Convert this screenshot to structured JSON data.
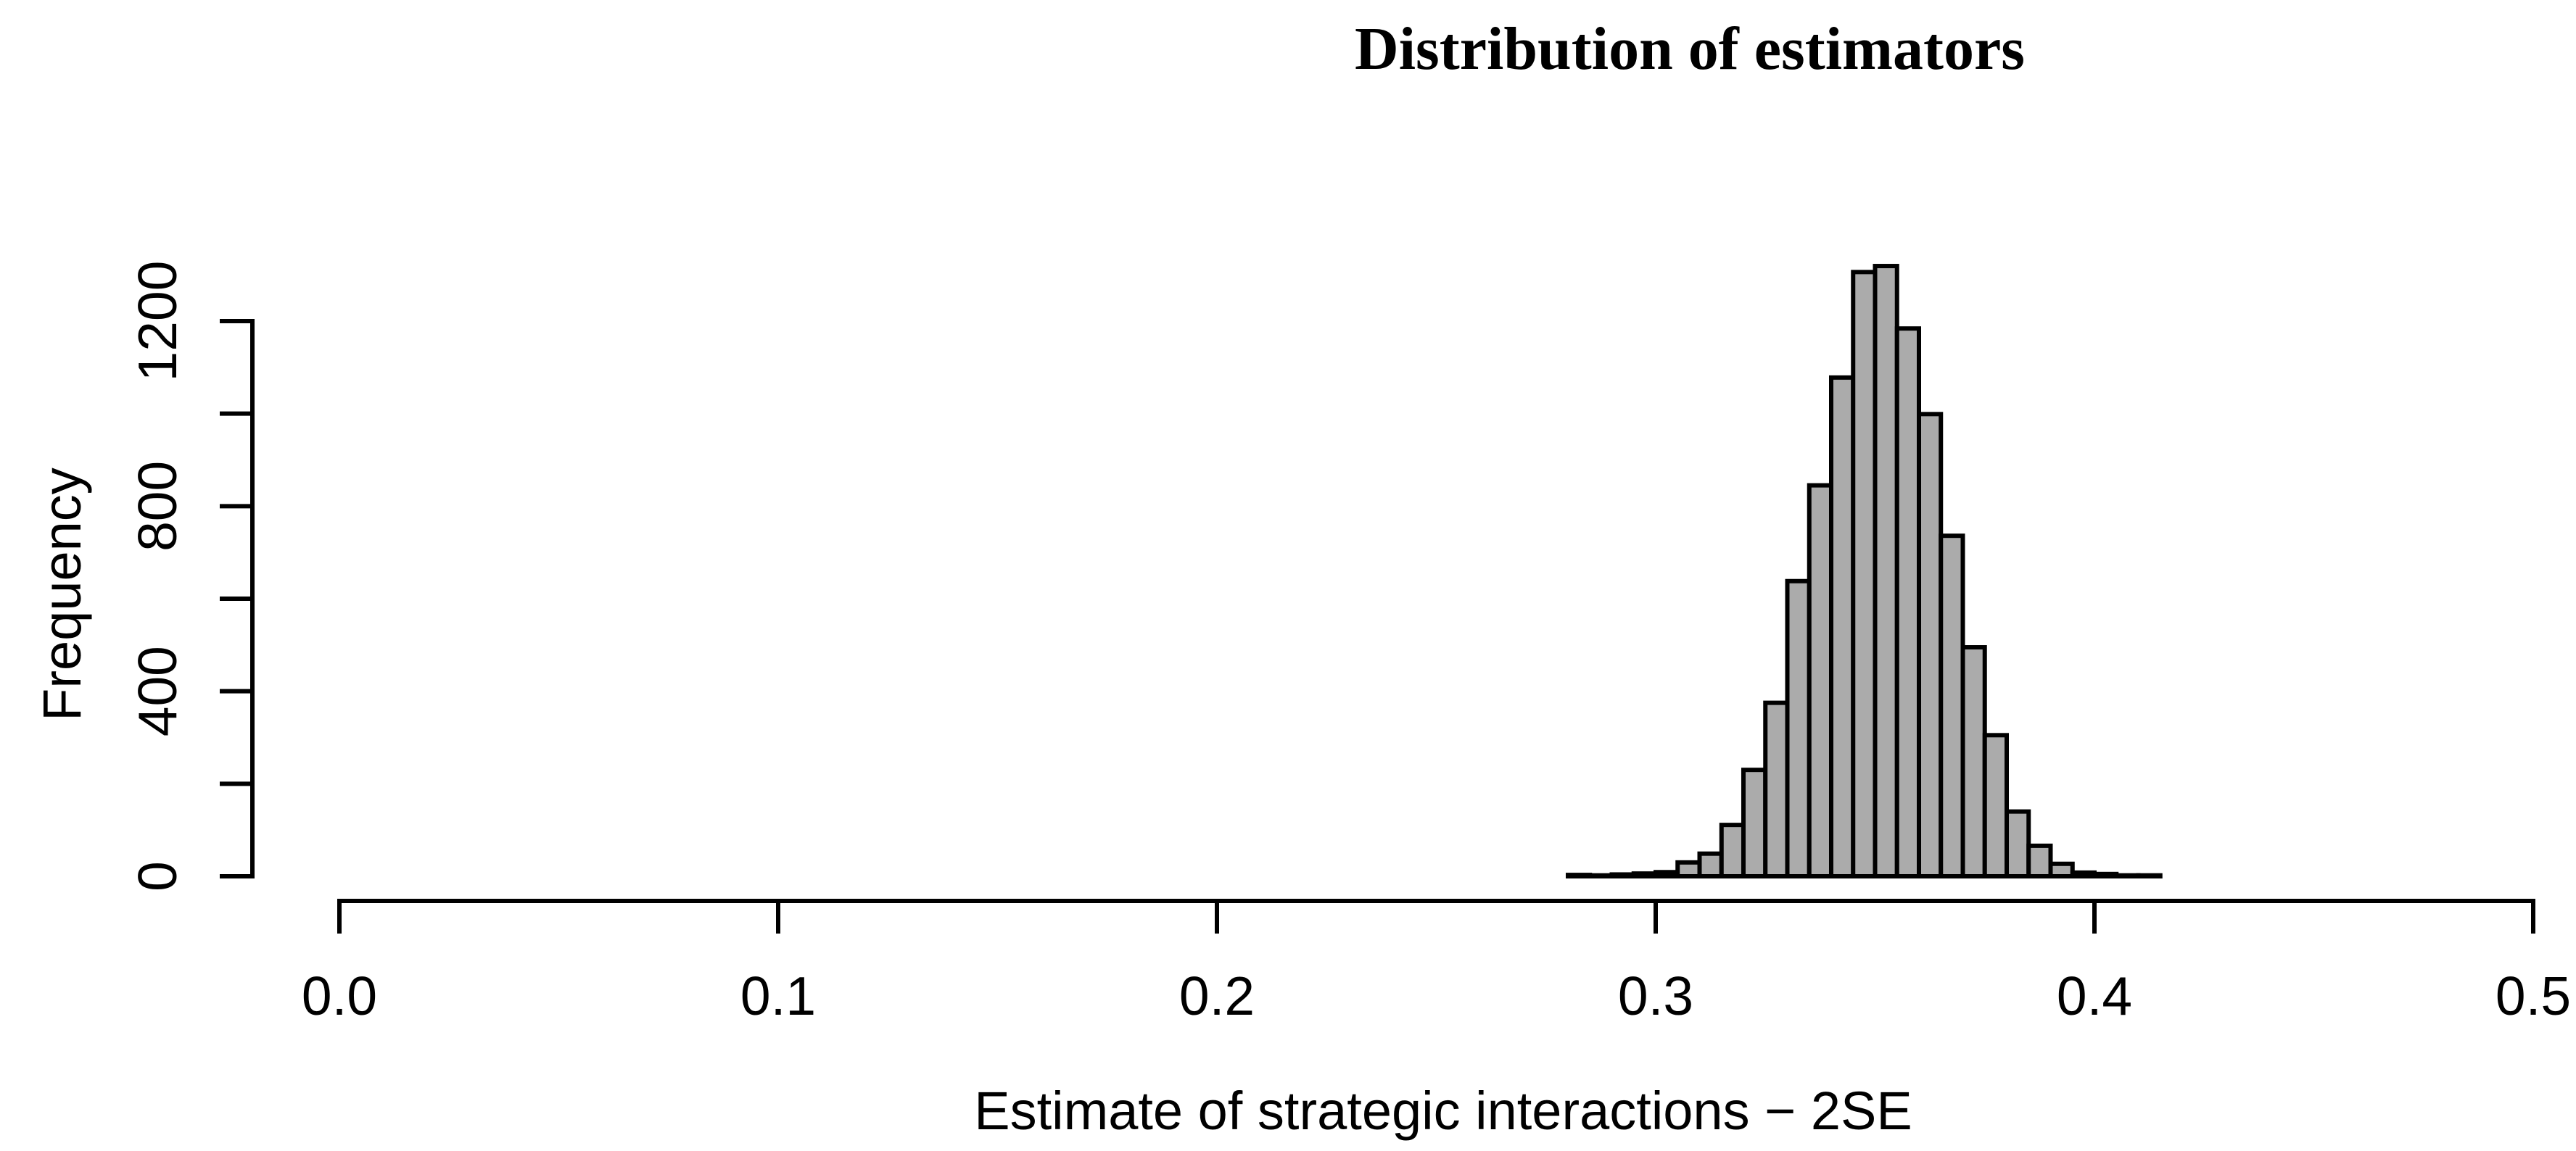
{
  "chart_data": {
    "type": "bar",
    "subtype": "histogram",
    "title": "Distribution of estimators",
    "xlabel": "Estimate of strategic interactions − 2SE",
    "ylabel": "Frequency",
    "xlim": [
      0.0,
      0.5
    ],
    "ylim": [
      0,
      1320
    ],
    "grid": false,
    "legend": "none",
    "bin_start": 0.28,
    "bin_width": 0.005,
    "counts": [
      3,
      2,
      4,
      6,
      9,
      30,
      49,
      111,
      230,
      375,
      638,
      845,
      1078,
      1306,
      1319,
      1184,
      999,
      736,
      495,
      305,
      140,
      66,
      27,
      8,
      5,
      2,
      2
    ],
    "x_ticks": [
      {
        "value": 0.0,
        "label": "0.0"
      },
      {
        "value": 0.1,
        "label": "0.1"
      },
      {
        "value": 0.2,
        "label": "0.2"
      },
      {
        "value": 0.3,
        "label": "0.3"
      },
      {
        "value": 0.4,
        "label": "0.4"
      },
      {
        "value": 0.5,
        "label": "0.5"
      }
    ],
    "y_ticks": [
      {
        "value": 0,
        "label": "0"
      },
      {
        "value": 200,
        "label": ""
      },
      {
        "value": 400,
        "label": "400"
      },
      {
        "value": 600,
        "label": ""
      },
      {
        "value": 800,
        "label": "800"
      },
      {
        "value": 1000,
        "label": ""
      },
      {
        "value": 1200,
        "label": "1200"
      }
    ],
    "colors": {
      "bar_fill": "#ababab",
      "bar_stroke": "#000000",
      "axis": "#000000",
      "text": "#000000",
      "background": "#ffffff"
    }
  }
}
